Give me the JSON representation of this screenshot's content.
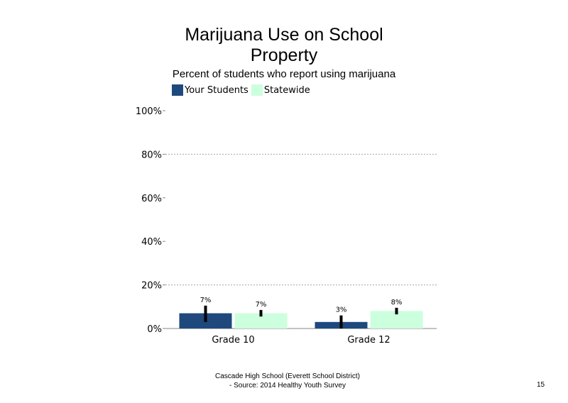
{
  "title_line1": "Marijuana Use on School",
  "title_line2": "Property",
  "subtitle": "Percent of students who report using marijuana",
  "footer": {
    "line1": "Cascade High School (Everett School District)",
    "line2": "- Source: 2014 Healthy  Youth Survey"
  },
  "page_number": "15",
  "colors": {
    "your_students": "#1f497d",
    "statewide": "#ccffdd"
  },
  "chart_data": {
    "type": "bar",
    "title": "Marijuana Use on School Property",
    "subtitle": "Percent of students who report using marijuana",
    "categories": [
      "Grade 10",
      "Grade 12"
    ],
    "series": [
      {
        "name": "Your Students",
        "values": [
          7,
          3
        ],
        "labels": [
          "7%",
          "3%"
        ],
        "error_low": [
          3,
          0
        ],
        "error_high": [
          10.5,
          6
        ],
        "color": "#1f497d"
      },
      {
        "name": "Statewide",
        "values": [
          7,
          8
        ],
        "labels": [
          "7%",
          "8%"
        ],
        "error_low": [
          5.5,
          6.5
        ],
        "error_high": [
          8.5,
          9.5
        ],
        "color": "#ccffdd"
      }
    ],
    "ylim": [
      0,
      100
    ],
    "yticks": [
      "0%",
      "20%",
      "40%",
      "60%",
      "80%",
      "100%"
    ],
    "ytick_values": [
      0,
      20,
      40,
      60,
      80,
      100
    ],
    "xlabel": "",
    "ylabel": "",
    "grid": "dotted horizontal at 20% and 80%",
    "legend": "top-left"
  }
}
